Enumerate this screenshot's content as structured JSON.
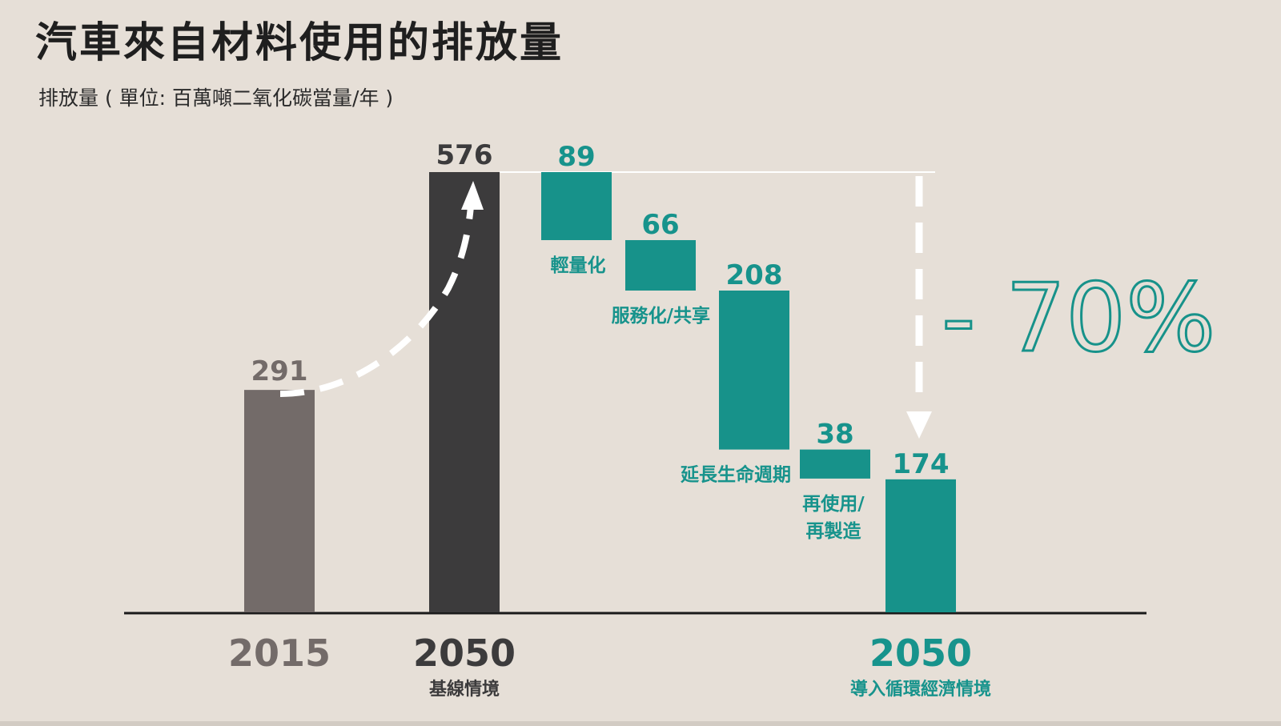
{
  "colors": {
    "background": "#e6dfd7",
    "bar_2015": "#736b69",
    "bar_2050_baseline": "#3c3b3c",
    "teal": "#17928a",
    "teal_text": "#17938c",
    "axis": "#1a1a1a",
    "arrow": "#ffffff"
  },
  "chart_data": {
    "type": "waterfall",
    "title": "汽車來自材料使用的排放量",
    "subtitle": "排放量 ( 單位: 百萬噸二氧化碳當量/年 )",
    "ylim": [
      0,
      576
    ],
    "bars": [
      {
        "kind": "total",
        "value": 291,
        "value_label": "291",
        "year": "2015",
        "sublabel": "",
        "color": "#736b69",
        "label_color": "#736b69"
      },
      {
        "kind": "total",
        "value": 576,
        "value_label": "576",
        "year": "2050",
        "sublabel": "基線情境",
        "color": "#3c3b3c",
        "label_color": "#3c3b3c"
      },
      {
        "kind": "step",
        "value": 89,
        "value_label": "89",
        "label": [
          "輕量化"
        ]
      },
      {
        "kind": "step",
        "value": 66,
        "value_label": "66",
        "label": [
          "服務化/共享"
        ]
      },
      {
        "kind": "step",
        "value": 208,
        "value_label": "208",
        "label": [
          "延長生命週期"
        ]
      },
      {
        "kind": "step",
        "value": 38,
        "value_label": "38",
        "label": [
          "再使用/",
          "再製造"
        ]
      },
      {
        "kind": "total",
        "value": 174,
        "value_label": "174",
        "year": "2050",
        "sublabel": "導入循環經濟情境",
        "color": "#17928a",
        "label_color": "#17938c"
      }
    ],
    "annotation": "- 70%"
  }
}
